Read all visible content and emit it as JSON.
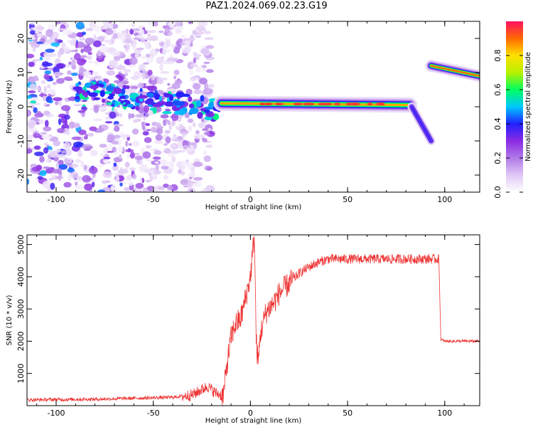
{
  "title": "PAZ1.2024.069.02.23.G19",
  "chart_data": [
    {
      "type": "heatmap",
      "xlabel": "Height of straight line (km)",
      "ylabel": "Frequency (Hz)",
      "xlim": [
        -115,
        118
      ],
      "ylim": [
        -25,
        25
      ],
      "xticks": [
        -100,
        -50,
        0,
        50,
        100
      ],
      "yticks": [
        -20,
        -10,
        0,
        10,
        20
      ],
      "colorbar": {
        "label": "Normalized spectral amplitude",
        "range": [
          0,
          1
        ],
        "ticks": [
          0.0,
          0.2,
          0.4,
          0.6,
          0.8
        ],
        "colormap": [
          "#ffffff",
          "#dfc8f5",
          "#b07ae8",
          "#8a2be2",
          "#2020ff",
          "#00c8ff",
          "#00ff60",
          "#b8f000",
          "#ffe000",
          "#ff6a00",
          "#ff1060"
        ]
      },
      "features": [
        {
          "name": "noisy region",
          "x": [
            -115,
            -20
          ],
          "y": [
            -25,
            25
          ],
          "amplitude": 0.2
        },
        {
          "name": "main tone",
          "x": [
            -15,
            82
          ],
          "y": [
            1,
            0.5
          ],
          "amplitude": 0.85
        },
        {
          "name": "falling tone",
          "x": [
            83,
            93
          ],
          "y": [
            0,
            -10
          ],
          "amplitude": 0.4
        },
        {
          "name": "upper tone",
          "x": [
            93,
            118
          ],
          "y": [
            12,
            9
          ],
          "amplitude": 0.9
        }
      ]
    },
    {
      "type": "line",
      "xlabel": "Height of straight line (km)",
      "ylabel": "SNR (10 * v/v)",
      "xlim": [
        -115,
        118
      ],
      "ylim": [
        0,
        5300
      ],
      "xticks": [
        -100,
        -50,
        0,
        50,
        100
      ],
      "yticks": [
        1000,
        2000,
        3000,
        4000,
        5000
      ],
      "color": "#ee3333",
      "series": [
        {
          "x": [
            -115,
            -100,
            -80,
            -60,
            -40,
            -30,
            -22,
            -18,
            -14,
            -12,
            -10,
            -8,
            -5,
            -3,
            0,
            2,
            3,
            4,
            5,
            8,
            12,
            15,
            20,
            25,
            30,
            35,
            40,
            50,
            60,
            70,
            80,
            90,
            97,
            98,
            100,
            110,
            118
          ],
          "y": [
            180,
            190,
            200,
            230,
            260,
            330,
            600,
            400,
            300,
            1300,
            2100,
            2500,
            2700,
            3200,
            4000,
            5300,
            2000,
            1300,
            2200,
            2900,
            3200,
            3500,
            3800,
            4100,
            4300,
            4450,
            4550,
            4550,
            4550,
            4550,
            4550,
            4550,
            4550,
            2050,
            2000,
            2000,
            2000
          ]
        }
      ]
    }
  ]
}
